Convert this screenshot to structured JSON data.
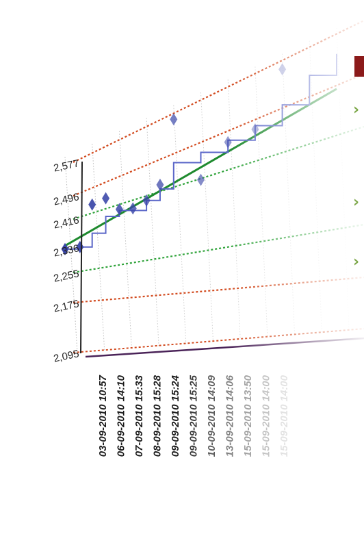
{
  "colors": {
    "red_dash": "#d24a1e",
    "green_dash": "#2fa33a",
    "avg_line": "#1e8a2e",
    "series_line": "#5a66c8",
    "marker": "#3a46a8",
    "axis": "#222222",
    "baseline": "#4a2358",
    "title_partial": "#8b1a1a",
    "bullet": "#7da84a"
  },
  "chart_data": {
    "type": "line",
    "y_ticks": [
      "2,577",
      "2,496",
      "2,416",
      "2,336",
      "2,255",
      "2,175",
      "2,095"
    ],
    "ylim": [
      2095,
      2577
    ],
    "x_labels": [
      "03-09-2010 10:57",
      "06-09-2010 14:10",
      "07-09-2010 15:33",
      "08-09-2010 15:28",
      "09-09-2010 15:24",
      "09-09-2010 15:25",
      "10-09-2010 14:09",
      "13-09-2010 14:06",
      "15-09-2010 13:50",
      "15-09-2010 14:00",
      "15-09-2010 14:00"
    ],
    "reference_lines": [
      {
        "style": "red-dashed",
        "value": 2577
      },
      {
        "style": "red-dashed",
        "value": 2496
      },
      {
        "style": "green-dashed",
        "value": 2416
      },
      {
        "style": "green-dashed",
        "value": 2255
      },
      {
        "style": "red-dashed",
        "value": 2175
      },
      {
        "style": "red-dashed",
        "value": 2095
      }
    ],
    "trend_line": {
      "style": "solid-green",
      "start": 2340,
      "end": 2490
    },
    "series_points": [
      {
        "x": 0.0,
        "y": 2330
      },
      {
        "x": 0.55,
        "y": 2325
      },
      {
        "x": 1.0,
        "y": 2355
      },
      {
        "x": 1.5,
        "y": 2390
      },
      {
        "x": 2.0,
        "y": 2395
      },
      {
        "x": 3.0,
        "y": 2400
      },
      {
        "x": 3.5,
        "y": 2418
      },
      {
        "x": 4.0,
        "y": 2470
      },
      {
        "x": 5.0,
        "y": 2470
      },
      {
        "x": 6.0,
        "y": 2474
      },
      {
        "x": 7.0,
        "y": 2482
      },
      {
        "x": 8.0,
        "y": 2500
      },
      {
        "x": 9.0,
        "y": 2530
      },
      {
        "x": 10.0,
        "y": 2545
      }
    ],
    "markers": [
      {
        "x": 0.0,
        "y": 2330
      },
      {
        "x": 0.55,
        "y": 2325
      },
      {
        "x": 1.0,
        "y": 2435
      },
      {
        "x": 1.5,
        "y": 2440
      },
      {
        "x": 2.0,
        "y": 2398
      },
      {
        "x": 2.5,
        "y": 2390
      },
      {
        "x": 3.0,
        "y": 2400
      },
      {
        "x": 3.5,
        "y": 2428
      },
      {
        "x": 4.0,
        "y": 2560
      },
      {
        "x": 5.0,
        "y": 2410
      },
      {
        "x": 6.0,
        "y": 2470
      },
      {
        "x": 7.0,
        "y": 2475
      },
      {
        "x": 8.0,
        "y": 2560
      }
    ]
  }
}
